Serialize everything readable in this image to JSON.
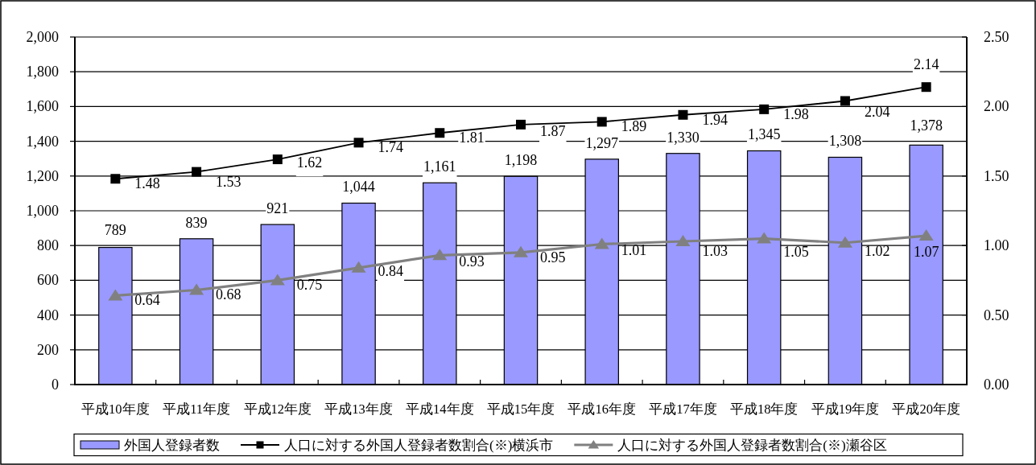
{
  "chart_data": {
    "type": "bar",
    "categories": [
      "平成10年度",
      "平成11年度",
      "平成12年度",
      "平成13年度",
      "平成14年度",
      "平成15年度",
      "平成16年度",
      "平成17年度",
      "平成18年度",
      "平成19年度",
      "平成20年度"
    ],
    "series": [
      {
        "name": "外国人登録者数",
        "color": "#9999ff",
        "values": [
          789,
          839,
          921,
          1044,
          1161,
          1198,
          1297,
          1330,
          1345,
          1308,
          1378
        ],
        "value_labels": [
          "789",
          "839",
          "921",
          "1,044",
          "1,161",
          "1,198",
          "1,297",
          "1,330",
          "1,345",
          "1,308",
          "1,378"
        ]
      },
      {
        "name": "人口に対する外国人登録者数割合(※)横浜市",
        "type": "line",
        "axis": "y2",
        "color": "#000000",
        "marker": "square",
        "values": [
          1.48,
          1.53,
          1.62,
          1.74,
          1.81,
          1.87,
          1.89,
          1.94,
          1.98,
          2.04,
          2.14
        ],
        "value_labels": [
          "1.48",
          "1.53",
          "1.62",
          "1.74",
          "1.81",
          "1.87",
          "1.89",
          "1.94",
          "1.98",
          "2.04",
          "2.14"
        ]
      },
      {
        "name": "人口に対する外国人登録者数割合(※)瀬谷区",
        "type": "line",
        "axis": "y2",
        "color": "#808080",
        "marker": "triangle",
        "values": [
          0.64,
          0.68,
          0.75,
          0.84,
          0.93,
          0.95,
          1.01,
          1.03,
          1.05,
          1.02,
          1.07
        ],
        "value_labels": [
          "0.64",
          "0.68",
          "0.75",
          "0.84",
          "0.93",
          "0.95",
          "1.01",
          "1.03",
          "1.05",
          "1.02",
          "1.07"
        ]
      }
    ],
    "ylim": [
      0,
      2000
    ],
    "yticks": [
      0,
      200,
      400,
      600,
      800,
      {
        "value": 1000,
        "label": "1,000"
      },
      {
        "value": 1200,
        "label": "1,200"
      },
      {
        "value": 1400,
        "label": "1,400"
      },
      {
        "value": 1600,
        "label": "1,600"
      },
      {
        "value": 1800,
        "label": "1,800"
      },
      {
        "value": 2000,
        "label": "2,000"
      }
    ],
    "y2lim": [
      0,
      2.5
    ],
    "y2ticks": [
      {
        "value": 0,
        "label": "0.00"
      },
      {
        "value": 0.5,
        "label": "0.50"
      },
      {
        "value": 1,
        "label": "1.00"
      },
      {
        "value": 1.5,
        "label": "1.50"
      },
      {
        "value": 2,
        "label": "2.00"
      },
      {
        "value": 2.5,
        "label": "2.50"
      }
    ],
    "grid": "y",
    "legend": "bottom"
  }
}
